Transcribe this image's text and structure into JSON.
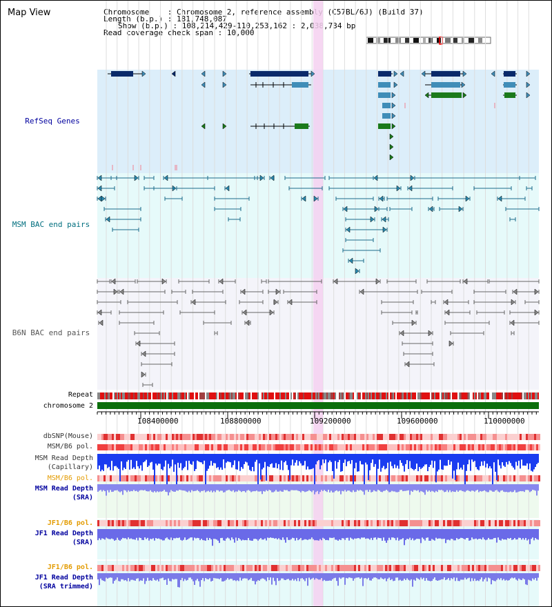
{
  "title": "Map View",
  "header": {
    "chromosome": "Chromosome    : Chromosome 2, reference assembly (C57BL/6J) (Build 37)",
    "length": "Length (b.p.) : 181,748,087",
    "show": "Show (b.p.) : 108,214,429-110,253,162 : 2,038,734 bp",
    "coverage": "Read coverage check span : 10,000"
  },
  "tracks": {
    "refseq": "RefSeq Genes",
    "msm_bac": "MSM BAC end pairs",
    "b6n_bac": "B6N BAC end pairs",
    "repeat": "Repeat",
    "chromosome": "chromosome 2",
    "dbsnp": "dbSNP(Mouse)",
    "msm_b6_pol_1": "MSM/B6 pol.",
    "msm_read_depth_cap": "MSM Read Depth\n(Capillary)",
    "msm_b6_pol_2": "MSM/B6 pol.",
    "msm_read_depth_sra": "MSM Read Depth\n(SRA)",
    "jf1_b6_pol_1": "JF1/B6 pol.",
    "jf1_read_depth_sra": "JF1 Read Depth\n(SRA)",
    "jf1_b6_pol_2": "JF1/B6 pol.",
    "jf1_read_depth_trim": "JF1 Read Depth\n(SRA trimmed)"
  },
  "axis": {
    "ticks": [
      "108400000",
      "108800000",
      "109200000",
      "109600000",
      "110000000"
    ]
  },
  "colors": {
    "refseq_bg": "#dceefa",
    "msm_bg": "#e6fafa",
    "b6n_bg": "#f4f4fa",
    "highlight": "#f5d0f0",
    "gene_dark": "#0a2a6a",
    "gene_mid": "#3f8db8",
    "gene_green": "#1b7a1b",
    "msm_pair": "#1a6a8a",
    "b6n_pair": "#666666",
    "chrom": "#0a6e0a",
    "label_blue": "#00009e",
    "label_orange": "#e39b00",
    "label_teal": "#006e7e"
  }
}
